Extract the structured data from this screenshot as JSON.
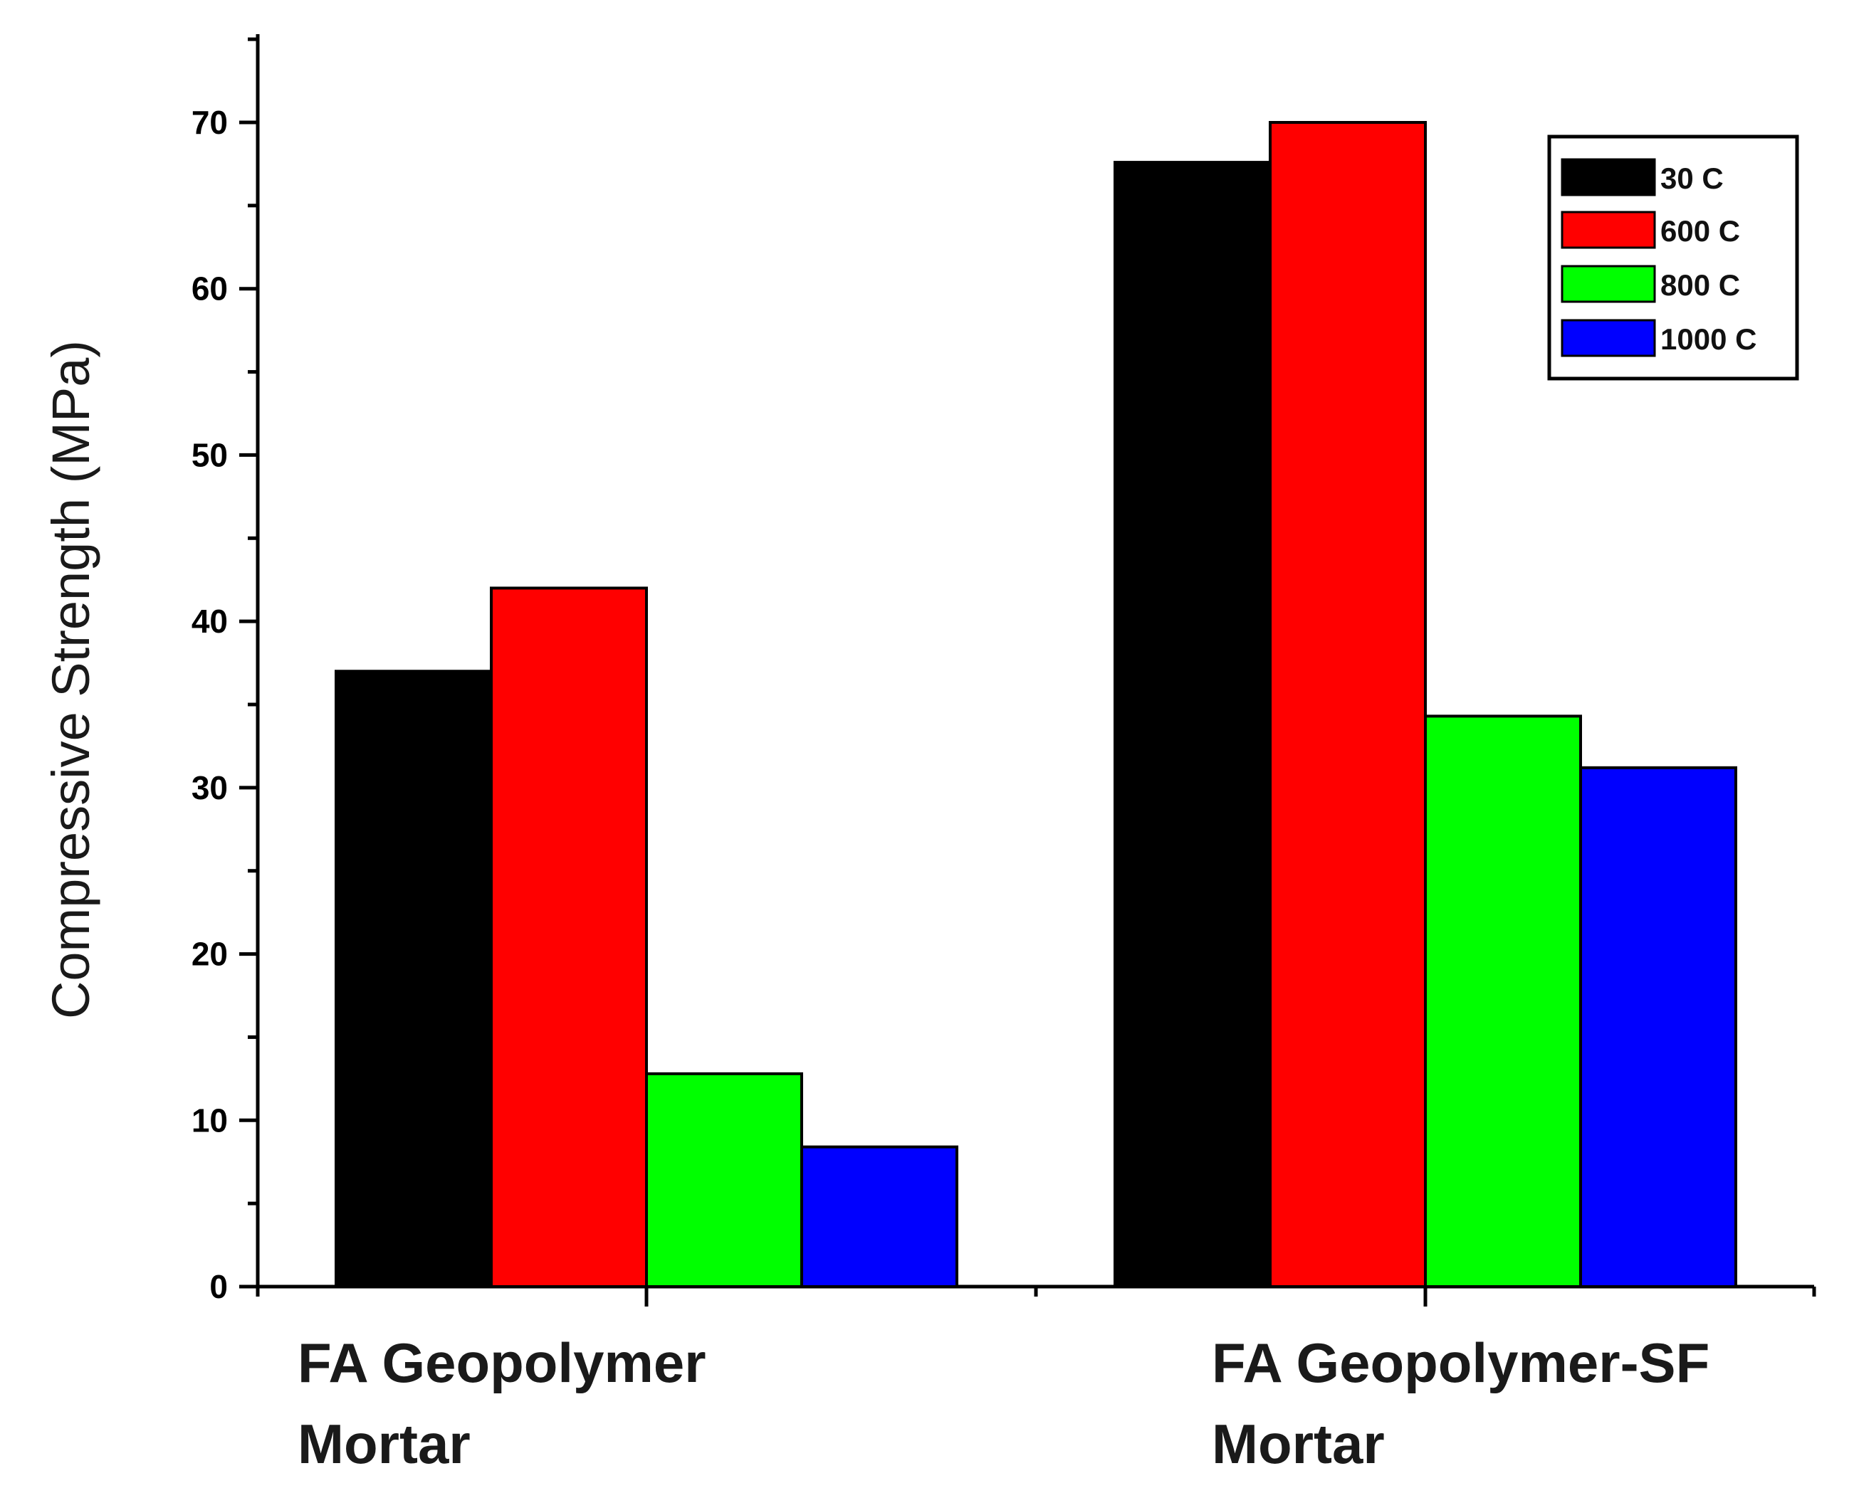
{
  "chart_data": {
    "type": "bar",
    "ylabel": "Compressive Strength (MPa)",
    "xlabel": "",
    "ylim": [
      0,
      75
    ],
    "yticks": [
      0,
      10,
      20,
      30,
      40,
      50,
      60,
      70
    ],
    "categories": [
      [
        "FA Geopolymer",
        "Mortar"
      ],
      [
        "FA Geopolymer-SF",
        "Mortar"
      ]
    ],
    "series": [
      {
        "name": "30   C",
        "color": "#000000",
        "values": [
          37.0,
          67.6
        ]
      },
      {
        "name": "600  C",
        "color": "#ff0000",
        "values": [
          42.0,
          70.0
        ]
      },
      {
        "name": "800  C",
        "color": "#00ff00",
        "values": [
          12.8,
          34.3
        ]
      },
      {
        "name": "1000 C",
        "color": "#0000ff",
        "values": [
          8.4,
          31.2
        ]
      }
    ],
    "legend_position": "top-right",
    "grid": false
  }
}
